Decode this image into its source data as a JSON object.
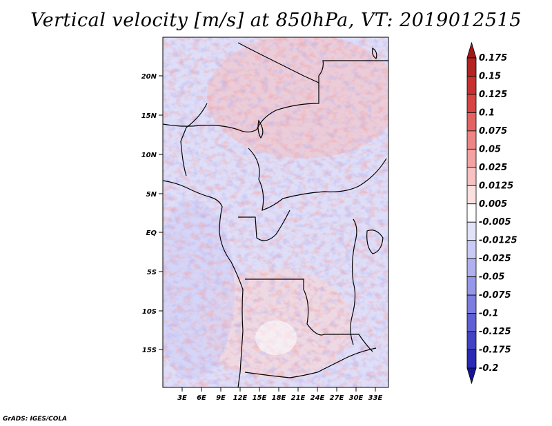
{
  "title": "Vertical velocity [m/s] at 850hPa, VT: 2019012515",
  "footer": "GrADS: IGES/COLA",
  "map": {
    "lat_ticks": [
      "20N",
      "15N",
      "10N",
      "5N",
      "EQ",
      "5S",
      "10S",
      "15S"
    ],
    "lon_ticks": [
      "3E",
      "6E",
      "9E",
      "12E",
      "15E",
      "18E",
      "21E",
      "24E",
      "27E",
      "30E",
      "33E"
    ]
  },
  "colorbar": {
    "labels": [
      "0.175",
      "0.15",
      "0.125",
      "0.1",
      "0.075",
      "0.05",
      "0.025",
      "0.0125",
      "0.005",
      "-0.005",
      "-0.0125",
      "-0.025",
      "-0.05",
      "-0.075",
      "-0.1",
      "-0.125",
      "-0.175",
      "-0.2"
    ],
    "colors": [
      "#a01818",
      "#b42222",
      "#c83030",
      "#d84444",
      "#e46262",
      "#ee8484",
      "#f4a2a2",
      "#f8c2c2",
      "#fce0e0",
      "#ffffff",
      "#e2e2fa",
      "#cacaf6",
      "#b0b0f0",
      "#9696ea",
      "#7c7ce2",
      "#5f5fd6",
      "#4242c6",
      "#2a2ab4",
      "#14149a"
    ]
  }
}
